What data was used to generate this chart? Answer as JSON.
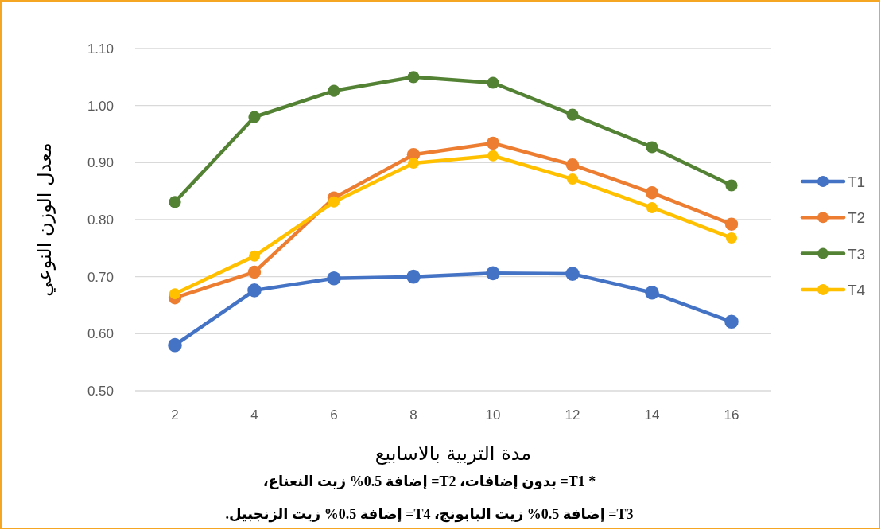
{
  "chart_data": {
    "type": "line",
    "xlabel": "مدة التربية بالاسابيع",
    "ylabel": "معدل الوزن النوعي",
    "categories": [
      "2",
      "4",
      "6",
      "8",
      "10",
      "12",
      "14",
      "16"
    ],
    "series": [
      {
        "name": "T1",
        "color": "#4472c4",
        "values": [
          0.58,
          0.676,
          0.697,
          0.7,
          0.706,
          0.705,
          0.672,
          0.621
        ]
      },
      {
        "name": "T2",
        "color": "#ed7d31",
        "values": [
          0.663,
          0.708,
          0.838,
          0.914,
          0.934,
          0.896,
          0.847,
          0.792
        ]
      },
      {
        "name": "T3",
        "color": "#548235",
        "values": [
          0.831,
          0.98,
          1.026,
          1.05,
          1.04,
          0.984,
          0.927,
          0.86
        ]
      },
      {
        "name": "T4",
        "color": "#ffc000",
        "values": [
          0.67,
          0.736,
          0.831,
          0.899,
          0.912,
          0.871,
          0.821,
          0.768
        ]
      }
    ],
    "ylim": [
      0.5,
      1.1
    ],
    "yticks": [
      {
        "value": 0.5,
        "label": "0.50"
      },
      {
        "value": 0.6,
        "label": "0.60"
      },
      {
        "value": 0.7,
        "label": "0.70"
      },
      {
        "value": 0.8,
        "label": "0.80"
      },
      {
        "value": 0.9,
        "label": "0.90"
      },
      {
        "value": 1.0,
        "label": "1.00"
      },
      {
        "value": 1.1,
        "label": "1.10"
      }
    ],
    "grid": "y",
    "legend": "right",
    "marker": "circle",
    "annotations": [
      "* T1= بدون إضافات،   T2= إضافة 0.5% زيت النعناع،",
      "T3= إضافة 0.5% زيت البابونج،   T4= إضافة 0.5% زيت الزنجبيل."
    ]
  }
}
